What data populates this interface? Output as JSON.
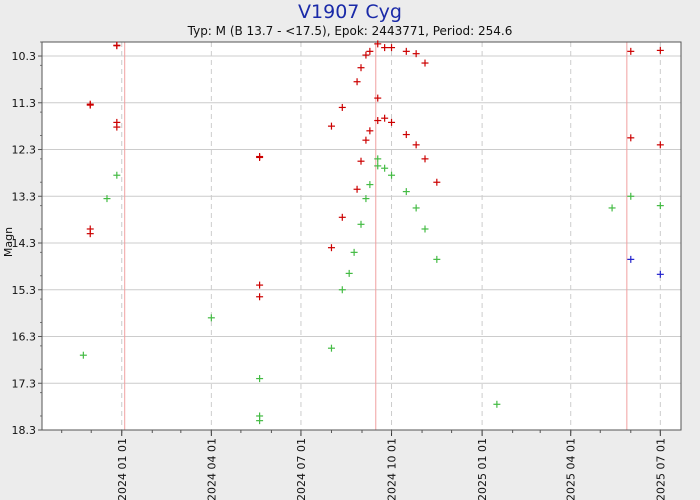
{
  "chart_data": {
    "type": "scatter",
    "title": "V1907 Cyg",
    "subtitle": "Typ: M (B 13.7 - <17.5), Epok: 2443771, Period: 254.6",
    "ylabel": "Magn",
    "xlabel": "",
    "y_inverted": true,
    "ylim": [
      10.0,
      18.3
    ],
    "y_ticks": [
      "10.3",
      "11.3",
      "12.3",
      "13.3",
      "14.3",
      "15.3",
      "16.3",
      "17.3",
      "18.3"
    ],
    "x_ticks": [
      "2024 01 01",
      "2024 04 01",
      "2024 07 01",
      "2024 10 01",
      "2025 01 01",
      "2025 04 01",
      "2025 07 01"
    ],
    "xlim": [
      "2023-10-12",
      "2025-07-22"
    ],
    "maxima_dates": [
      "2024-01-04",
      "2024-09-15",
      "2025-05-28"
    ],
    "colors": {
      "red": "#cc0000",
      "green": "#44bb44",
      "blue": "#2222cc",
      "grid": "#cccccc",
      "maxima_line": "#f0a0a0",
      "title": "#1a2aa8"
    },
    "series": [
      {
        "color": "red",
        "points": [
          [
            "2023-11-30",
            11.35
          ],
          [
            "2023-11-30",
            11.33
          ],
          [
            "2023-11-30",
            14.0
          ],
          [
            "2023-11-30",
            14.1
          ],
          [
            "2023-12-27",
            10.07
          ],
          [
            "2023-12-27",
            10.08
          ],
          [
            "2023-12-27",
            11.72
          ],
          [
            "2023-12-27",
            11.82
          ],
          [
            "2024-05-20",
            12.45
          ],
          [
            "2024-05-20",
            12.47
          ],
          [
            "2024-05-20",
            15.2
          ],
          [
            "2024-05-20",
            15.45
          ],
          [
            "2024-08-01",
            11.8
          ],
          [
            "2024-08-01",
            14.4
          ],
          [
            "2024-08-12",
            11.4
          ],
          [
            "2024-08-12",
            13.75
          ],
          [
            "2024-08-27",
            10.85
          ],
          [
            "2024-08-27",
            13.15
          ],
          [
            "2024-08-31",
            10.55
          ],
          [
            "2024-08-31",
            12.55
          ],
          [
            "2024-09-05",
            10.28
          ],
          [
            "2024-09-05",
            12.1
          ],
          [
            "2024-09-09",
            10.2
          ],
          [
            "2024-09-09",
            11.9
          ],
          [
            "2024-09-17",
            10.04
          ],
          [
            "2024-09-17",
            11.2
          ],
          [
            "2024-09-17",
            11.68
          ],
          [
            "2024-09-24",
            10.12
          ],
          [
            "2024-09-24",
            11.63
          ],
          [
            "2024-10-01",
            10.12
          ],
          [
            "2024-10-01",
            11.72
          ],
          [
            "2024-10-16",
            10.2
          ],
          [
            "2024-10-16",
            11.98
          ],
          [
            "2024-10-26",
            10.25
          ],
          [
            "2024-10-26",
            12.2
          ],
          [
            "2024-11-04",
            10.45
          ],
          [
            "2024-11-04",
            12.5
          ],
          [
            "2024-11-16",
            13.0
          ],
          [
            "2025-06-01",
            10.2
          ],
          [
            "2025-06-01",
            12.05
          ],
          [
            "2025-07-01",
            10.18
          ],
          [
            "2025-07-01",
            12.2
          ]
        ]
      },
      {
        "color": "green",
        "points": [
          [
            "2023-11-23",
            16.7
          ],
          [
            "2023-12-17",
            13.35
          ],
          [
            "2023-12-27",
            12.85
          ],
          [
            "2024-04-01",
            15.9
          ],
          [
            "2024-05-20",
            17.2
          ],
          [
            "2024-05-20",
            18.0
          ],
          [
            "2024-05-20",
            18.1
          ],
          [
            "2024-08-01",
            16.55
          ],
          [
            "2024-08-12",
            15.3
          ],
          [
            "2024-08-19",
            14.95
          ],
          [
            "2024-08-24",
            14.5
          ],
          [
            "2024-08-31",
            13.9
          ],
          [
            "2024-09-05",
            13.35
          ],
          [
            "2024-09-09",
            13.05
          ],
          [
            "2024-09-17",
            12.5
          ],
          [
            "2024-09-17",
            12.65
          ],
          [
            "2024-09-24",
            12.7
          ],
          [
            "2024-10-01",
            12.85
          ],
          [
            "2024-10-16",
            13.2
          ],
          [
            "2024-10-26",
            13.55
          ],
          [
            "2024-11-04",
            14.0
          ],
          [
            "2024-11-16",
            14.65
          ],
          [
            "2025-01-16",
            17.75
          ],
          [
            "2025-05-13",
            13.55
          ],
          [
            "2025-06-01",
            13.3
          ],
          [
            "2025-07-01",
            13.5
          ]
        ]
      },
      {
        "color": "blue",
        "points": [
          [
            "2025-06-01",
            14.65
          ],
          [
            "2025-07-01",
            14.97
          ]
        ]
      }
    ]
  }
}
